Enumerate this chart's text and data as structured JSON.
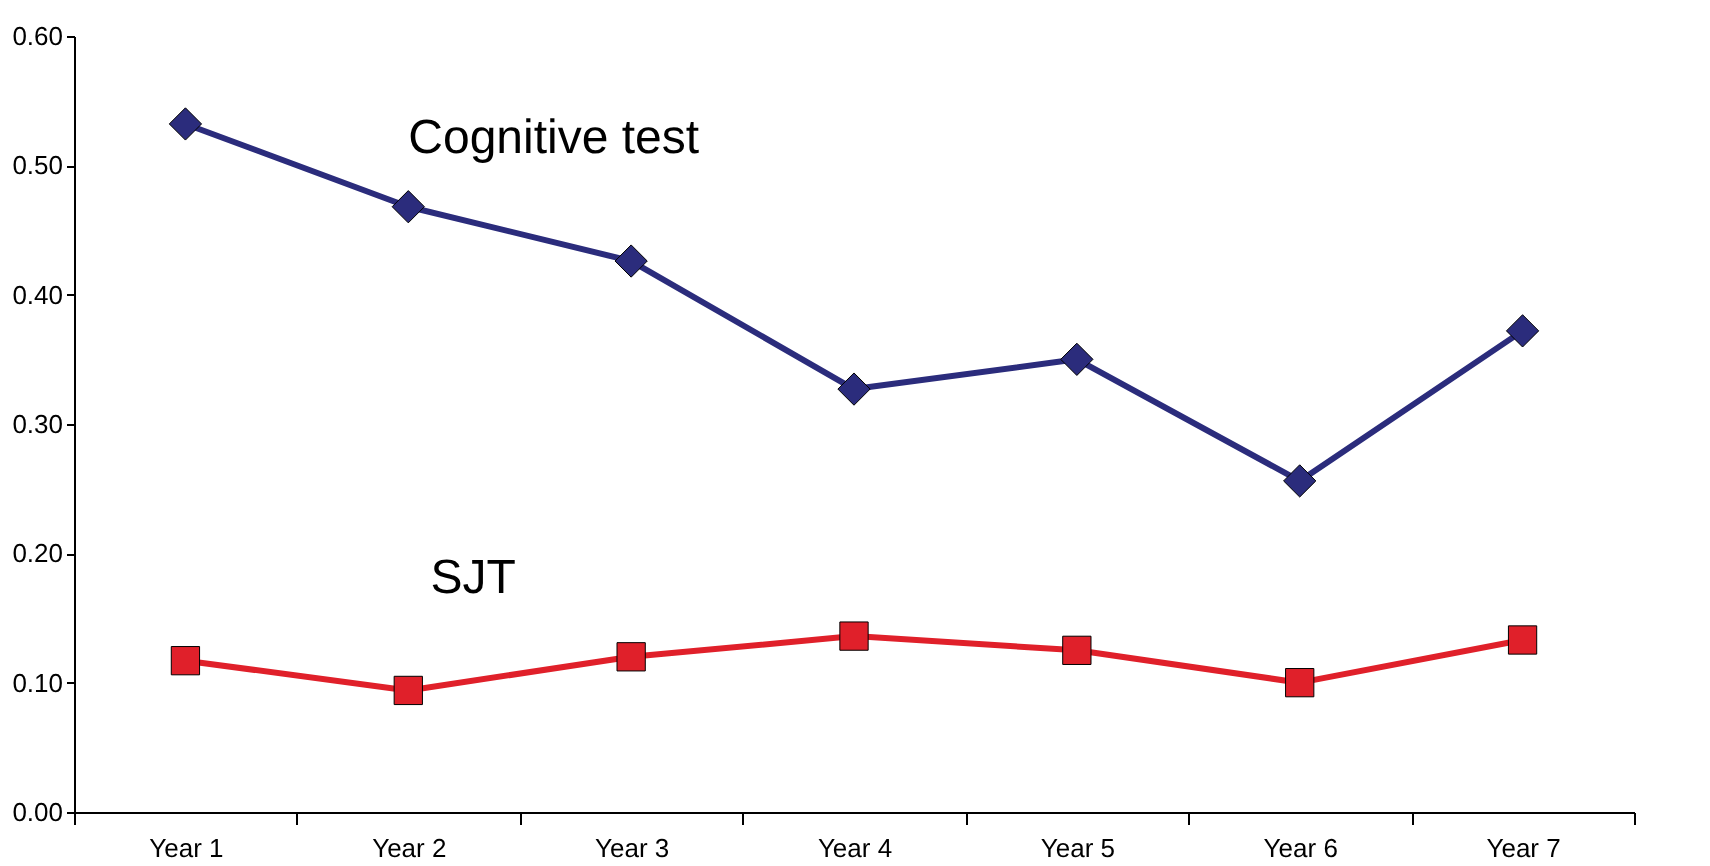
{
  "chart_data": {
    "type": "line",
    "categories": [
      "Year 1",
      "Year 2",
      "Year 3",
      "Year 4",
      "Year 5",
      "Year 6",
      "Year 7"
    ],
    "series": [
      {
        "name": "Cognitive test",
        "color": "#2b2c7c",
        "marker": "diamond",
        "values": [
          0.532,
          0.468,
          0.426,
          0.327,
          0.35,
          0.256,
          0.372
        ]
      },
      {
        "name": "SJT",
        "color": "#e0202a",
        "marker": "square",
        "values": [
          0.117,
          0.094,
          0.12,
          0.136,
          0.125,
          0.1,
          0.133
        ]
      }
    ],
    "ylim": [
      0,
      0.6
    ],
    "yticks": [
      {
        "value": 0,
        "label": "0.00"
      },
      {
        "value": 0.1,
        "label": "0.10"
      },
      {
        "value": 0.2,
        "label": "0.20"
      },
      {
        "value": 0.3,
        "label": "0.30"
      },
      {
        "value": 0.4,
        "label": "0.40"
      },
      {
        "value": 0.5,
        "label": "0.50"
      },
      {
        "value": 0.6,
        "label": "0.60"
      }
    ],
    "grid": false,
    "line_style": "solid"
  }
}
